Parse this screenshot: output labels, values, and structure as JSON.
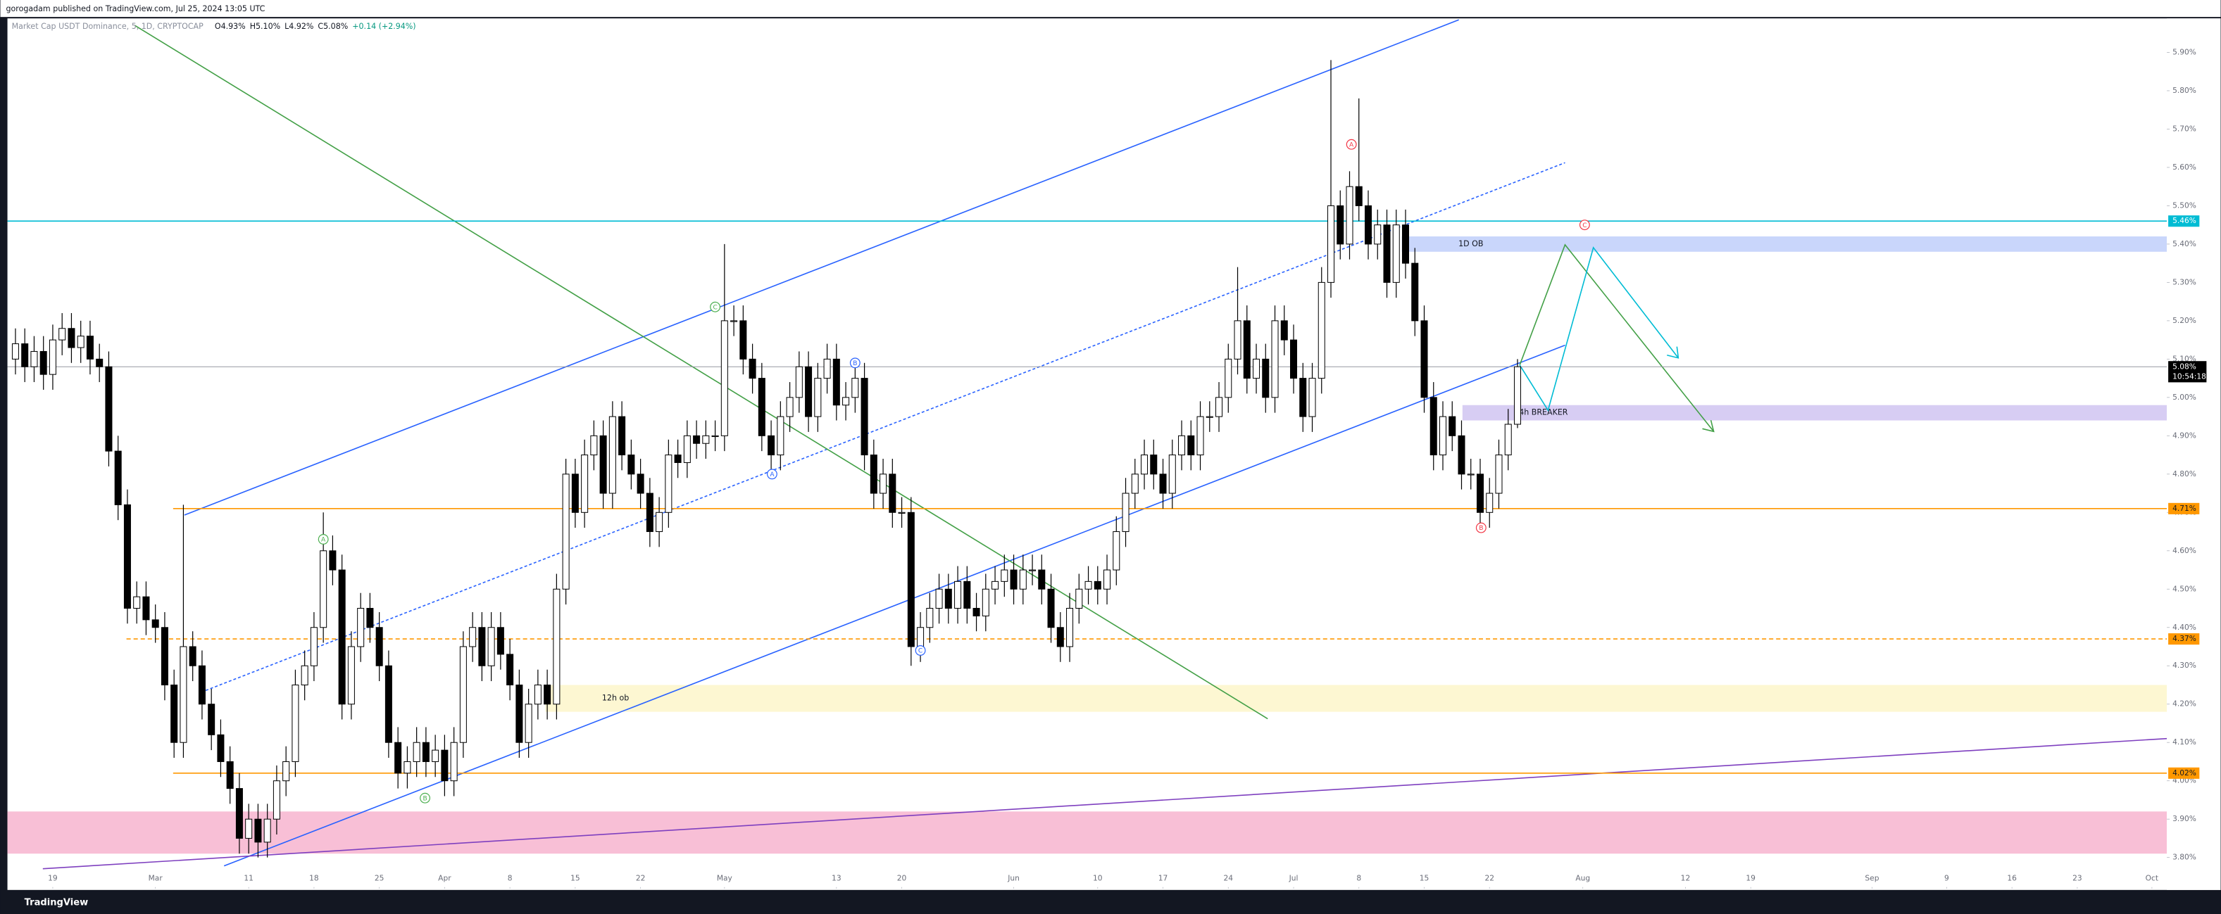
{
  "header": "gorogadam published on TradingView.com, Jul 25, 2024 13:05 UTC",
  "footer": "TradingView",
  "chart_data": {
    "type": "candlestick",
    "title": "Market Cap USDT Dominance, 5, 1D, CRYPTOCAP",
    "ohlc_labels": [
      "O4.93%",
      "H5.10%",
      "L4.92%",
      "C5.08%",
      "+0.14 (+2.94%)"
    ],
    "open": [
      5.1,
      5.14,
      5.08,
      5.12,
      5.06,
      5.15,
      5.18,
      5.13,
      5.16,
      5.1,
      5.08,
      4.86,
      4.72,
      4.45,
      4.48,
      4.42,
      4.4,
      4.25,
      4.1,
      4.35,
      4.3,
      4.2,
      4.12,
      4.05,
      3.98,
      3.85,
      3.9,
      3.84,
      3.9,
      4.0,
      4.05,
      4.25,
      4.3,
      4.4,
      4.6,
      4.55,
      4.2,
      4.35,
      4.45,
      4.4,
      4.3,
      4.1,
      4.02,
      4.05,
      4.1,
      4.05,
      4.08,
      4.0,
      4.1,
      4.35,
      4.4,
      4.3,
      4.4,
      4.33,
      4.25,
      4.1,
      4.2,
      4.25,
      4.2,
      4.5,
      4.8,
      4.7,
      4.85,
      4.9,
      4.75,
      4.95,
      4.85,
      4.8,
      4.75,
      4.65,
      4.7,
      4.85,
      4.83,
      4.9,
      4.88,
      4.9,
      4.9,
      5.2,
      5.2,
      5.1,
      5.05,
      4.9,
      4.85,
      4.95,
      5.0,
      5.08,
      4.95,
      5.05,
      5.1,
      4.98,
      5.0,
      5.05,
      4.85,
      4.75,
      4.8,
      4.7,
      4.7,
      4.35,
      4.4,
      4.45,
      4.5,
      4.45,
      4.52,
      4.45,
      4.43,
      4.5,
      4.52,
      4.55,
      4.5,
      4.55,
      4.55,
      4.5,
      4.4,
      4.35,
      4.45,
      4.5,
      4.52,
      4.5,
      4.55,
      4.65,
      4.75,
      4.8,
      4.85,
      4.8,
      4.75,
      4.85,
      4.9,
      4.85,
      4.95,
      4.95,
      5.0,
      5.1,
      5.2,
      5.05,
      5.1,
      5.0,
      5.2,
      5.15,
      5.05,
      4.95,
      5.05,
      5.3,
      5.5,
      5.4,
      5.55,
      5.5,
      5.4,
      5.45,
      5.3,
      5.45,
      5.35,
      5.2,
      5.0,
      4.85,
      4.95,
      4.9,
      4.8,
      4.8,
      4.7,
      4.75,
      4.85,
      4.93
    ],
    "high": [
      5.18,
      5.18,
      5.16,
      5.16,
      5.19,
      5.22,
      5.22,
      5.2,
      5.2,
      5.14,
      5.12,
      4.9,
      4.76,
      4.52,
      4.52,
      4.46,
      4.44,
      4.29,
      4.72,
      4.39,
      4.34,
      4.24,
      4.16,
      4.09,
      4.02,
      3.94,
      3.94,
      3.94,
      4.04,
      4.09,
      4.29,
      4.34,
      4.44,
      4.7,
      4.64,
      4.59,
      4.39,
      4.49,
      4.49,
      4.44,
      4.34,
      4.14,
      4.09,
      4.14,
      4.14,
      4.12,
      4.12,
      4.14,
      4.39,
      4.44,
      4.44,
      4.44,
      4.44,
      4.37,
      4.29,
      4.24,
      4.29,
      4.29,
      4.54,
      4.84,
      4.84,
      4.89,
      4.94,
      4.94,
      4.99,
      4.99,
      4.89,
      4.84,
      4.79,
      4.74,
      4.89,
      4.89,
      4.94,
      4.94,
      4.94,
      4.94,
      5.4,
      5.24,
      5.24,
      5.14,
      5.09,
      4.94,
      4.99,
      5.04,
      5.12,
      5.12,
      5.09,
      5.14,
      5.14,
      5.04,
      5.09,
      5.09,
      4.89,
      4.84,
      4.84,
      4.74,
      4.74,
      4.44,
      4.49,
      4.54,
      4.54,
      4.56,
      4.56,
      4.49,
      4.54,
      4.56,
      4.59,
      4.59,
      4.59,
      4.59,
      4.59,
      4.54,
      4.44,
      4.49,
      4.54,
      4.56,
      4.56,
      4.59,
      4.69,
      4.79,
      4.84,
      4.89,
      4.89,
      4.84,
      4.89,
      4.94,
      4.94,
      4.99,
      4.99,
      5.04,
      5.14,
      5.34,
      5.24,
      5.14,
      5.14,
      5.24,
      5.24,
      5.19,
      5.09,
      5.09,
      5.34,
      5.88,
      5.54,
      5.59,
      5.78,
      5.54,
      5.49,
      5.49,
      5.49,
      5.49,
      5.39,
      5.24,
      5.04,
      4.99,
      4.99,
      4.94,
      4.84,
      4.84,
      4.79,
      4.89,
      4.97,
      5.1
    ],
    "low": [
      5.06,
      5.04,
      5.04,
      5.02,
      5.02,
      5.11,
      5.09,
      5.09,
      5.06,
      5.04,
      4.82,
      4.68,
      4.41,
      4.41,
      4.38,
      4.36,
      4.21,
      4.06,
      4.06,
      4.26,
      4.16,
      4.08,
      4.01,
      3.94,
      3.81,
      3.81,
      3.8,
      3.8,
      3.86,
      3.96,
      4.01,
      4.21,
      4.26,
      4.36,
      4.51,
      4.16,
      4.16,
      4.31,
      4.36,
      4.26,
      4.06,
      3.98,
      3.98,
      4.01,
      4.01,
      4.01,
      3.96,
      3.96,
      4.06,
      4.31,
      4.26,
      4.26,
      4.29,
      4.21,
      4.06,
      4.06,
      4.16,
      4.16,
      4.16,
      4.46,
      4.66,
      4.66,
      4.81,
      4.71,
      4.71,
      4.81,
      4.76,
      4.71,
      4.61,
      4.61,
      4.66,
      4.79,
      4.79,
      4.84,
      4.84,
      4.86,
      4.86,
      5.16,
      5.06,
      5.01,
      4.86,
      4.81,
      4.81,
      4.91,
      4.96,
      4.91,
      4.91,
      5.01,
      4.94,
      4.94,
      4.96,
      4.81,
      4.71,
      4.71,
      4.66,
      4.66,
      4.3,
      4.31,
      4.36,
      4.41,
      4.41,
      4.41,
      4.41,
      4.39,
      4.39,
      4.46,
      4.48,
      4.46,
      4.46,
      4.51,
      4.46,
      4.36,
      4.31,
      4.31,
      4.41,
      4.46,
      4.46,
      4.46,
      4.51,
      4.61,
      4.71,
      4.76,
      4.76,
      4.71,
      4.71,
      4.81,
      4.81,
      4.81,
      4.91,
      4.91,
      4.96,
      5.06,
      5.01,
      5.01,
      4.96,
      4.96,
      5.11,
      5.01,
      4.91,
      4.91,
      5.01,
      5.26,
      5.36,
      5.36,
      5.46,
      5.36,
      5.36,
      5.26,
      5.26,
      5.31,
      5.16,
      4.96,
      4.81,
      4.81,
      4.86,
      4.76,
      4.76,
      4.67,
      4.66,
      4.71,
      4.81,
      4.92
    ],
    "close": [
      5.14,
      5.08,
      5.12,
      5.06,
      5.15,
      5.18,
      5.13,
      5.16,
      5.1,
      5.08,
      4.86,
      4.72,
      4.45,
      4.48,
      4.42,
      4.4,
      4.25,
      4.1,
      4.35,
      4.3,
      4.2,
      4.12,
      4.05,
      3.98,
      3.85,
      3.9,
      3.84,
      3.9,
      4.0,
      4.05,
      4.25,
      4.3,
      4.4,
      4.6,
      4.55,
      4.2,
      4.35,
      4.45,
      4.4,
      4.3,
      4.1,
      4.02,
      4.05,
      4.1,
      4.05,
      4.08,
      4.0,
      4.1,
      4.35,
      4.4,
      4.3,
      4.4,
      4.33,
      4.25,
      4.1,
      4.2,
      4.25,
      4.2,
      4.5,
      4.8,
      4.7,
      4.85,
      4.9,
      4.75,
      4.95,
      4.85,
      4.8,
      4.75,
      4.65,
      4.7,
      4.85,
      4.83,
      4.9,
      4.88,
      4.9,
      4.9,
      5.2,
      5.2,
      5.1,
      5.05,
      4.9,
      4.85,
      4.95,
      5.0,
      5.08,
      4.95,
      5.05,
      5.1,
      4.98,
      5.0,
      5.05,
      4.85,
      4.75,
      4.8,
      4.7,
      4.7,
      4.35,
      4.4,
      4.45,
      4.5,
      4.45,
      4.52,
      4.45,
      4.43,
      4.5,
      4.52,
      4.55,
      4.5,
      4.55,
      4.55,
      4.5,
      4.4,
      4.35,
      4.45,
      4.5,
      4.52,
      4.5,
      4.55,
      4.65,
      4.75,
      4.8,
      4.85,
      4.8,
      4.75,
      4.85,
      4.9,
      4.85,
      4.95,
      4.95,
      5.0,
      5.1,
      5.2,
      5.05,
      5.1,
      5.0,
      5.2,
      5.15,
      5.05,
      4.95,
      5.05,
      5.3,
      5.5,
      5.4,
      5.55,
      5.5,
      5.4,
      5.45,
      5.3,
      5.45,
      5.35,
      5.2,
      5.0,
      4.85,
      4.95,
      4.9,
      4.8,
      4.8,
      4.7,
      4.75,
      4.85,
      4.93,
      5.08
    ],
    "up_color": "#ffffff",
    "down_color": "#000000",
    "xlim": [
      -0.86,
      230.6
    ],
    "xticks": [
      {
        "value": 4,
        "label": "19"
      },
      {
        "value": 15,
        "label": "Mar"
      },
      {
        "value": 25,
        "label": "11"
      },
      {
        "value": 32,
        "label": "18"
      },
      {
        "value": 39,
        "label": "25"
      },
      {
        "value": 46,
        "label": "Apr"
      },
      {
        "value": 53,
        "label": "8"
      },
      {
        "value": 60,
        "label": "15"
      },
      {
        "value": 67,
        "label": "22"
      },
      {
        "value": 76,
        "label": "May"
      },
      {
        "value": 88,
        "label": "13"
      },
      {
        "value": 95,
        "label": "20"
      },
      {
        "value": 107,
        "label": "Jun"
      },
      {
        "value": 116,
        "label": "10"
      },
      {
        "value": 123,
        "label": "17"
      },
      {
        "value": 130,
        "label": "24"
      },
      {
        "value": 137,
        "label": "Jul"
      },
      {
        "value": 144,
        "label": "8"
      },
      {
        "value": 151,
        "label": "15"
      },
      {
        "value": 158,
        "label": "22"
      },
      {
        "value": 168,
        "label": "Aug"
      },
      {
        "value": 179,
        "label": "12"
      },
      {
        "value": 186,
        "label": "19"
      },
      {
        "value": 199,
        "label": "Sep"
      },
      {
        "value": 207,
        "label": "9"
      },
      {
        "value": 214,
        "label": "16"
      },
      {
        "value": 221,
        "label": "23"
      },
      {
        "value": 229,
        "label": "Oct"
      }
    ],
    "ylim": [
      3.719,
      5.985
    ],
    "yticks": [
      {
        "value": 3.8,
        "label": "3.80%"
      },
      {
        "value": 3.9,
        "label": "3.90%"
      },
      {
        "value": 4.0,
        "label": "4.00%"
      },
      {
        "value": 4.1,
        "label": "4.10%"
      },
      {
        "value": 4.2,
        "label": "4.20%"
      },
      {
        "value": 4.3,
        "label": "4.30%"
      },
      {
        "value": 4.4,
        "label": "4.40%"
      },
      {
        "value": 4.5,
        "label": "4.50%"
      },
      {
        "value": 4.6,
        "label": "4.60%"
      },
      {
        "value": 4.7,
        "label": "4.70%"
      },
      {
        "value": 4.8,
        "label": "4.80%"
      },
      {
        "value": 4.9,
        "label": "4.90%"
      },
      {
        "value": 5.0,
        "label": "5.00%"
      },
      {
        "value": 5.1,
        "label": "5.10%"
      },
      {
        "value": 5.2,
        "label": "5.20%"
      },
      {
        "value": 5.3,
        "label": "5.30%"
      },
      {
        "value": 5.4,
        "label": "5.40%"
      },
      {
        "value": 5.5,
        "label": "5.50%"
      },
      {
        "value": 5.6,
        "label": "5.60%"
      },
      {
        "value": 5.7,
        "label": "5.70%"
      },
      {
        "value": 5.8,
        "label": "5.80%"
      },
      {
        "value": 5.9,
        "label": "5.90%"
      }
    ],
    "levels": [
      {
        "value": 5.46,
        "label": "5.46%",
        "x0": -0.86,
        "color": "#00bcd4",
        "dashed": false
      },
      {
        "value": 4.71,
        "label": "4.71%",
        "x0": 16.9,
        "color": "#ff9800",
        "dashed": false
      },
      {
        "value": 4.37,
        "label": "4.37%",
        "x0": 11.9,
        "color": "#ff9800",
        "dashed": true
      },
      {
        "value": 4.02,
        "label": "4.02%",
        "x0": 16.9,
        "color": "#ff9800",
        "dashed": false
      }
    ],
    "last_price": {
      "value": 5.08,
      "label": "5.08%",
      "countdown": "10:54:18"
    },
    "zones": [
      {
        "label": "1D OB",
        "x0": 148.6,
        "y0": 5.38,
        "y1": 5.42,
        "color": "#c9d6fb"
      },
      {
        "label": "4h BREAKER",
        "x0": 155.1,
        "y0": 4.94,
        "y1": 4.98,
        "color": "#d7cdf3"
      },
      {
        "label": "12h ob",
        "x0": 56.8,
        "y0": 4.18,
        "y1": 4.25,
        "color": "#fdf7d2"
      },
      {
        "x0": -0.86,
        "y0": 3.81,
        "y1": 3.92,
        "color": "#f8bfd6"
      }
    ],
    "wave_labels": [
      {
        "text": "A",
        "x": 33.0,
        "y": 4.63,
        "color": "#4caf50"
      },
      {
        "text": "B",
        "x": 43.9,
        "y": 3.955,
        "color": "#4caf50"
      },
      {
        "text": "C",
        "x": 75.0,
        "y": 5.236,
        "color": "#4caf50"
      },
      {
        "text": "A",
        "x": 81.1,
        "y": 4.8,
        "color": "#2962ff"
      },
      {
        "text": "B",
        "x": 90.0,
        "y": 5.09,
        "color": "#2962ff"
      },
      {
        "text": "C",
        "x": 97.0,
        "y": 4.34,
        "color": "#2962ff"
      },
      {
        "text": "A",
        "x": 143.2,
        "y": 5.66,
        "color": "#f23645"
      },
      {
        "text": "B",
        "x": 157.1,
        "y": 4.66,
        "color": "#f23645"
      },
      {
        "text": "C",
        "x": 168.2,
        "y": 5.45,
        "color": "#f23645"
      }
    ]
  }
}
